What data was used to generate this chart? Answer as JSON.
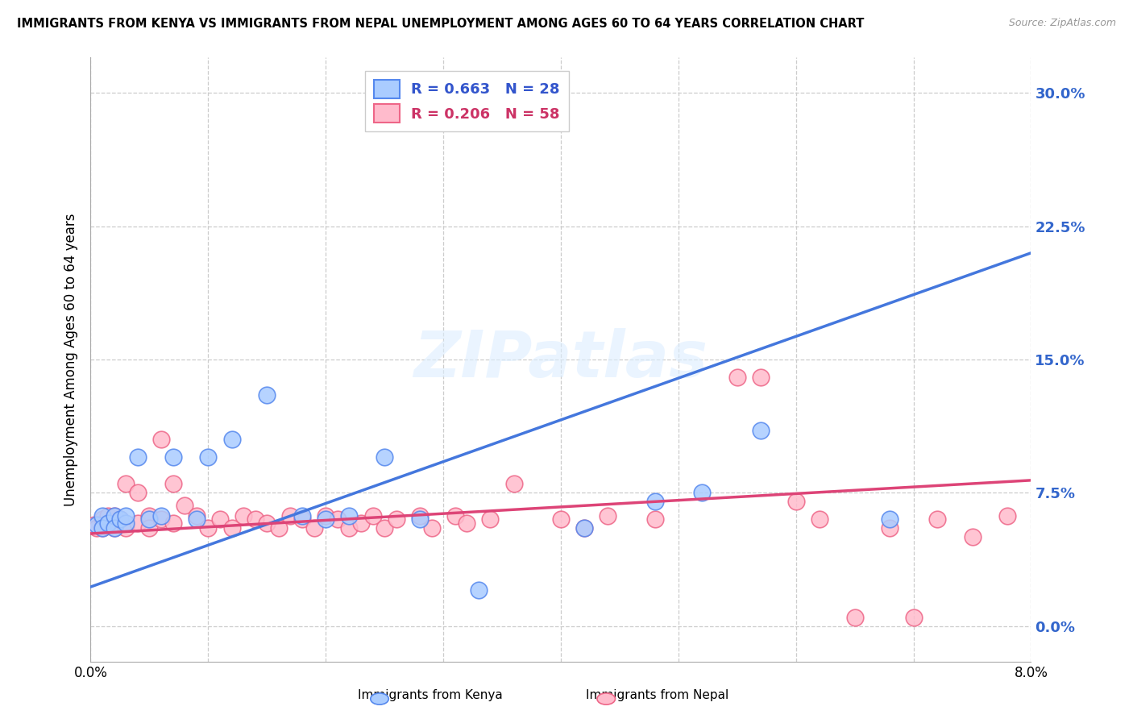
{
  "title": "IMMIGRANTS FROM KENYA VS IMMIGRANTS FROM NEPAL UNEMPLOYMENT AMONG AGES 60 TO 64 YEARS CORRELATION CHART",
  "source": "Source: ZipAtlas.com",
  "ylabel": "Unemployment Among Ages 60 to 64 years",
  "xlim": [
    0.0,
    0.08
  ],
  "ylim": [
    -0.02,
    0.32
  ],
  "ytick_vals": [
    0.0,
    0.075,
    0.15,
    0.225,
    0.3
  ],
  "ytick_labels": [
    "0.0%",
    "7.5%",
    "15.0%",
    "22.5%",
    "30.0%"
  ],
  "xtick_vals": [
    0.0,
    0.01,
    0.02,
    0.03,
    0.04,
    0.05,
    0.06,
    0.07,
    0.08
  ],
  "xtick_labels": [
    "0.0%",
    "",
    "",
    "",
    "",
    "",
    "",
    "",
    "8.0%"
  ],
  "grid_color": "#cccccc",
  "background_color": "#ffffff",
  "kenya_color": "#5588ee",
  "kenya_fill": "#aaccff",
  "nepal_color": "#ee6688",
  "nepal_fill": "#ffbbcc",
  "kenya_line_color": "#4477dd",
  "nepal_line_color": "#dd4477",
  "kenya_R": 0.663,
  "kenya_N": 28,
  "nepal_R": 0.206,
  "nepal_N": 58,
  "watermark": "ZIPatlas",
  "legend_label_kenya": "R = 0.663   N = 28",
  "legend_label_nepal": "R = 0.206   N = 58",
  "bottom_legend_kenya": "Immigrants from Kenya",
  "bottom_legend_nepal": "Immigrants from Nepal",
  "kenya_line_x0": 0.0,
  "kenya_line_y0": 0.022,
  "kenya_line_x1": 0.08,
  "kenya_line_y1": 0.21,
  "nepal_line_x0": 0.0,
  "nepal_line_y0": 0.052,
  "nepal_line_x1": 0.08,
  "nepal_line_y1": 0.082,
  "kenya_pts_x": [
    0.0005,
    0.001,
    0.001,
    0.0015,
    0.002,
    0.002,
    0.0025,
    0.003,
    0.003,
    0.004,
    0.005,
    0.006,
    0.007,
    0.009,
    0.01,
    0.012,
    0.015,
    0.018,
    0.02,
    0.022,
    0.025,
    0.028,
    0.033,
    0.042,
    0.048,
    0.052,
    0.057,
    0.068
  ],
  "kenya_pts_y": [
    0.057,
    0.062,
    0.055,
    0.058,
    0.062,
    0.055,
    0.06,
    0.058,
    0.062,
    0.095,
    0.06,
    0.062,
    0.095,
    0.06,
    0.095,
    0.105,
    0.13,
    0.062,
    0.06,
    0.062,
    0.095,
    0.06,
    0.02,
    0.055,
    0.07,
    0.075,
    0.11,
    0.06
  ],
  "nepal_pts_x": [
    0.0003,
    0.0005,
    0.001,
    0.001,
    0.0015,
    0.0015,
    0.002,
    0.002,
    0.0025,
    0.003,
    0.003,
    0.004,
    0.004,
    0.005,
    0.005,
    0.006,
    0.006,
    0.007,
    0.007,
    0.008,
    0.009,
    0.01,
    0.011,
    0.012,
    0.013,
    0.014,
    0.015,
    0.016,
    0.017,
    0.018,
    0.019,
    0.02,
    0.021,
    0.022,
    0.023,
    0.024,
    0.025,
    0.026,
    0.028,
    0.029,
    0.031,
    0.032,
    0.034,
    0.036,
    0.04,
    0.042,
    0.044,
    0.048,
    0.055,
    0.057,
    0.06,
    0.062,
    0.065,
    0.068,
    0.07,
    0.072,
    0.075,
    0.078
  ],
  "nepal_pts_y": [
    0.057,
    0.055,
    0.06,
    0.055,
    0.062,
    0.057,
    0.055,
    0.062,
    0.06,
    0.055,
    0.08,
    0.058,
    0.075,
    0.062,
    0.055,
    0.06,
    0.105,
    0.08,
    0.058,
    0.068,
    0.062,
    0.055,
    0.06,
    0.055,
    0.062,
    0.06,
    0.058,
    0.055,
    0.062,
    0.06,
    0.055,
    0.062,
    0.06,
    0.055,
    0.058,
    0.062,
    0.055,
    0.06,
    0.062,
    0.055,
    0.062,
    0.058,
    0.06,
    0.08,
    0.06,
    0.055,
    0.062,
    0.06,
    0.14,
    0.14,
    0.07,
    0.06,
    0.005,
    0.055,
    0.005,
    0.06,
    0.05,
    0.062
  ]
}
